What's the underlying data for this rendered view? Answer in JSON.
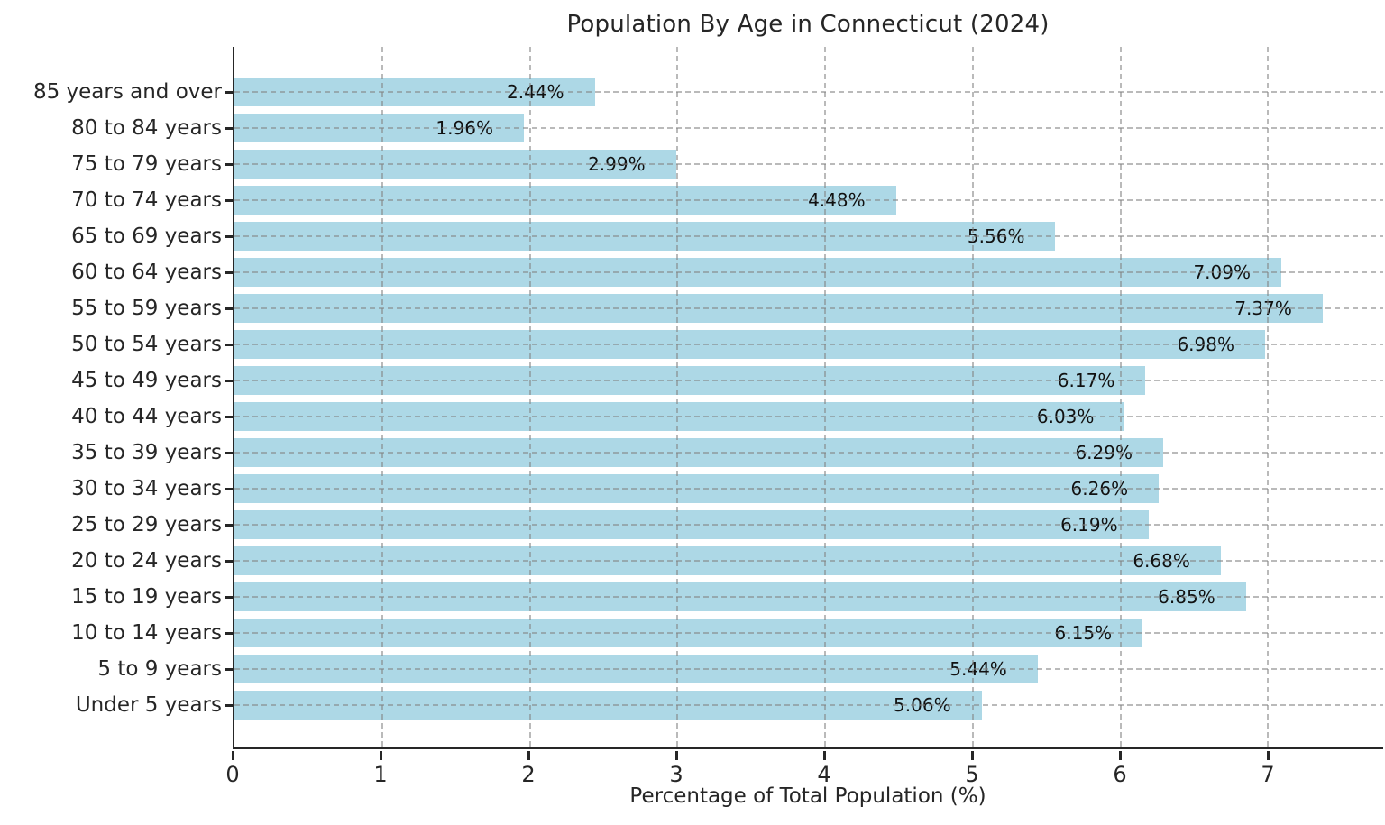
{
  "title": "Population By Age in Connecticut (2024)",
  "xlabel": "Percentage of Total Population (%)",
  "colors": {
    "bar": "#ADD8E6",
    "grid": "#828282",
    "axis": "#262626",
    "text": "#262626",
    "background": "#ffffff"
  },
  "chart_data": {
    "type": "bar",
    "orientation": "horizontal",
    "title": "Population By Age in Connecticut (2024)",
    "xlabel": "Percentage of Total Population (%)",
    "ylabel": "",
    "categories": [
      "85 years and over",
      "80 to 84 years",
      "75 to 79 years",
      "70 to 74 years",
      "65 to 69 years",
      "60 to 64 years",
      "55 to 59 years",
      "50 to 54 years",
      "45 to 49 years",
      "40 to 44 years",
      "35 to 39 years",
      "30 to 34 years",
      "25 to 29 years",
      "20 to 24 years",
      "15 to 19 years",
      "10 to 14 years",
      "5 to 9 years",
      "Under 5 years"
    ],
    "values": [
      2.44,
      1.96,
      2.99,
      4.48,
      5.56,
      7.09,
      7.37,
      6.98,
      6.17,
      6.03,
      6.29,
      6.26,
      6.19,
      6.68,
      6.85,
      6.15,
      5.44,
      5.06
    ],
    "data_labels": [
      "2.44%",
      "1.96%",
      "2.99%",
      "4.48%",
      "5.56%",
      "7.09%",
      "7.37%",
      "6.98%",
      "6.17%",
      "6.03%",
      "6.29%",
      "6.26%",
      "6.19%",
      "6.68%",
      "6.85%",
      "6.15%",
      "5.44%",
      "5.06%"
    ],
    "xlim": [
      0,
      7.78
    ],
    "xticks": [
      0,
      1,
      2,
      3,
      4,
      5,
      6,
      7
    ],
    "grid": "dashed",
    "legend": "none",
    "bar_color": "#ADD8E6"
  }
}
